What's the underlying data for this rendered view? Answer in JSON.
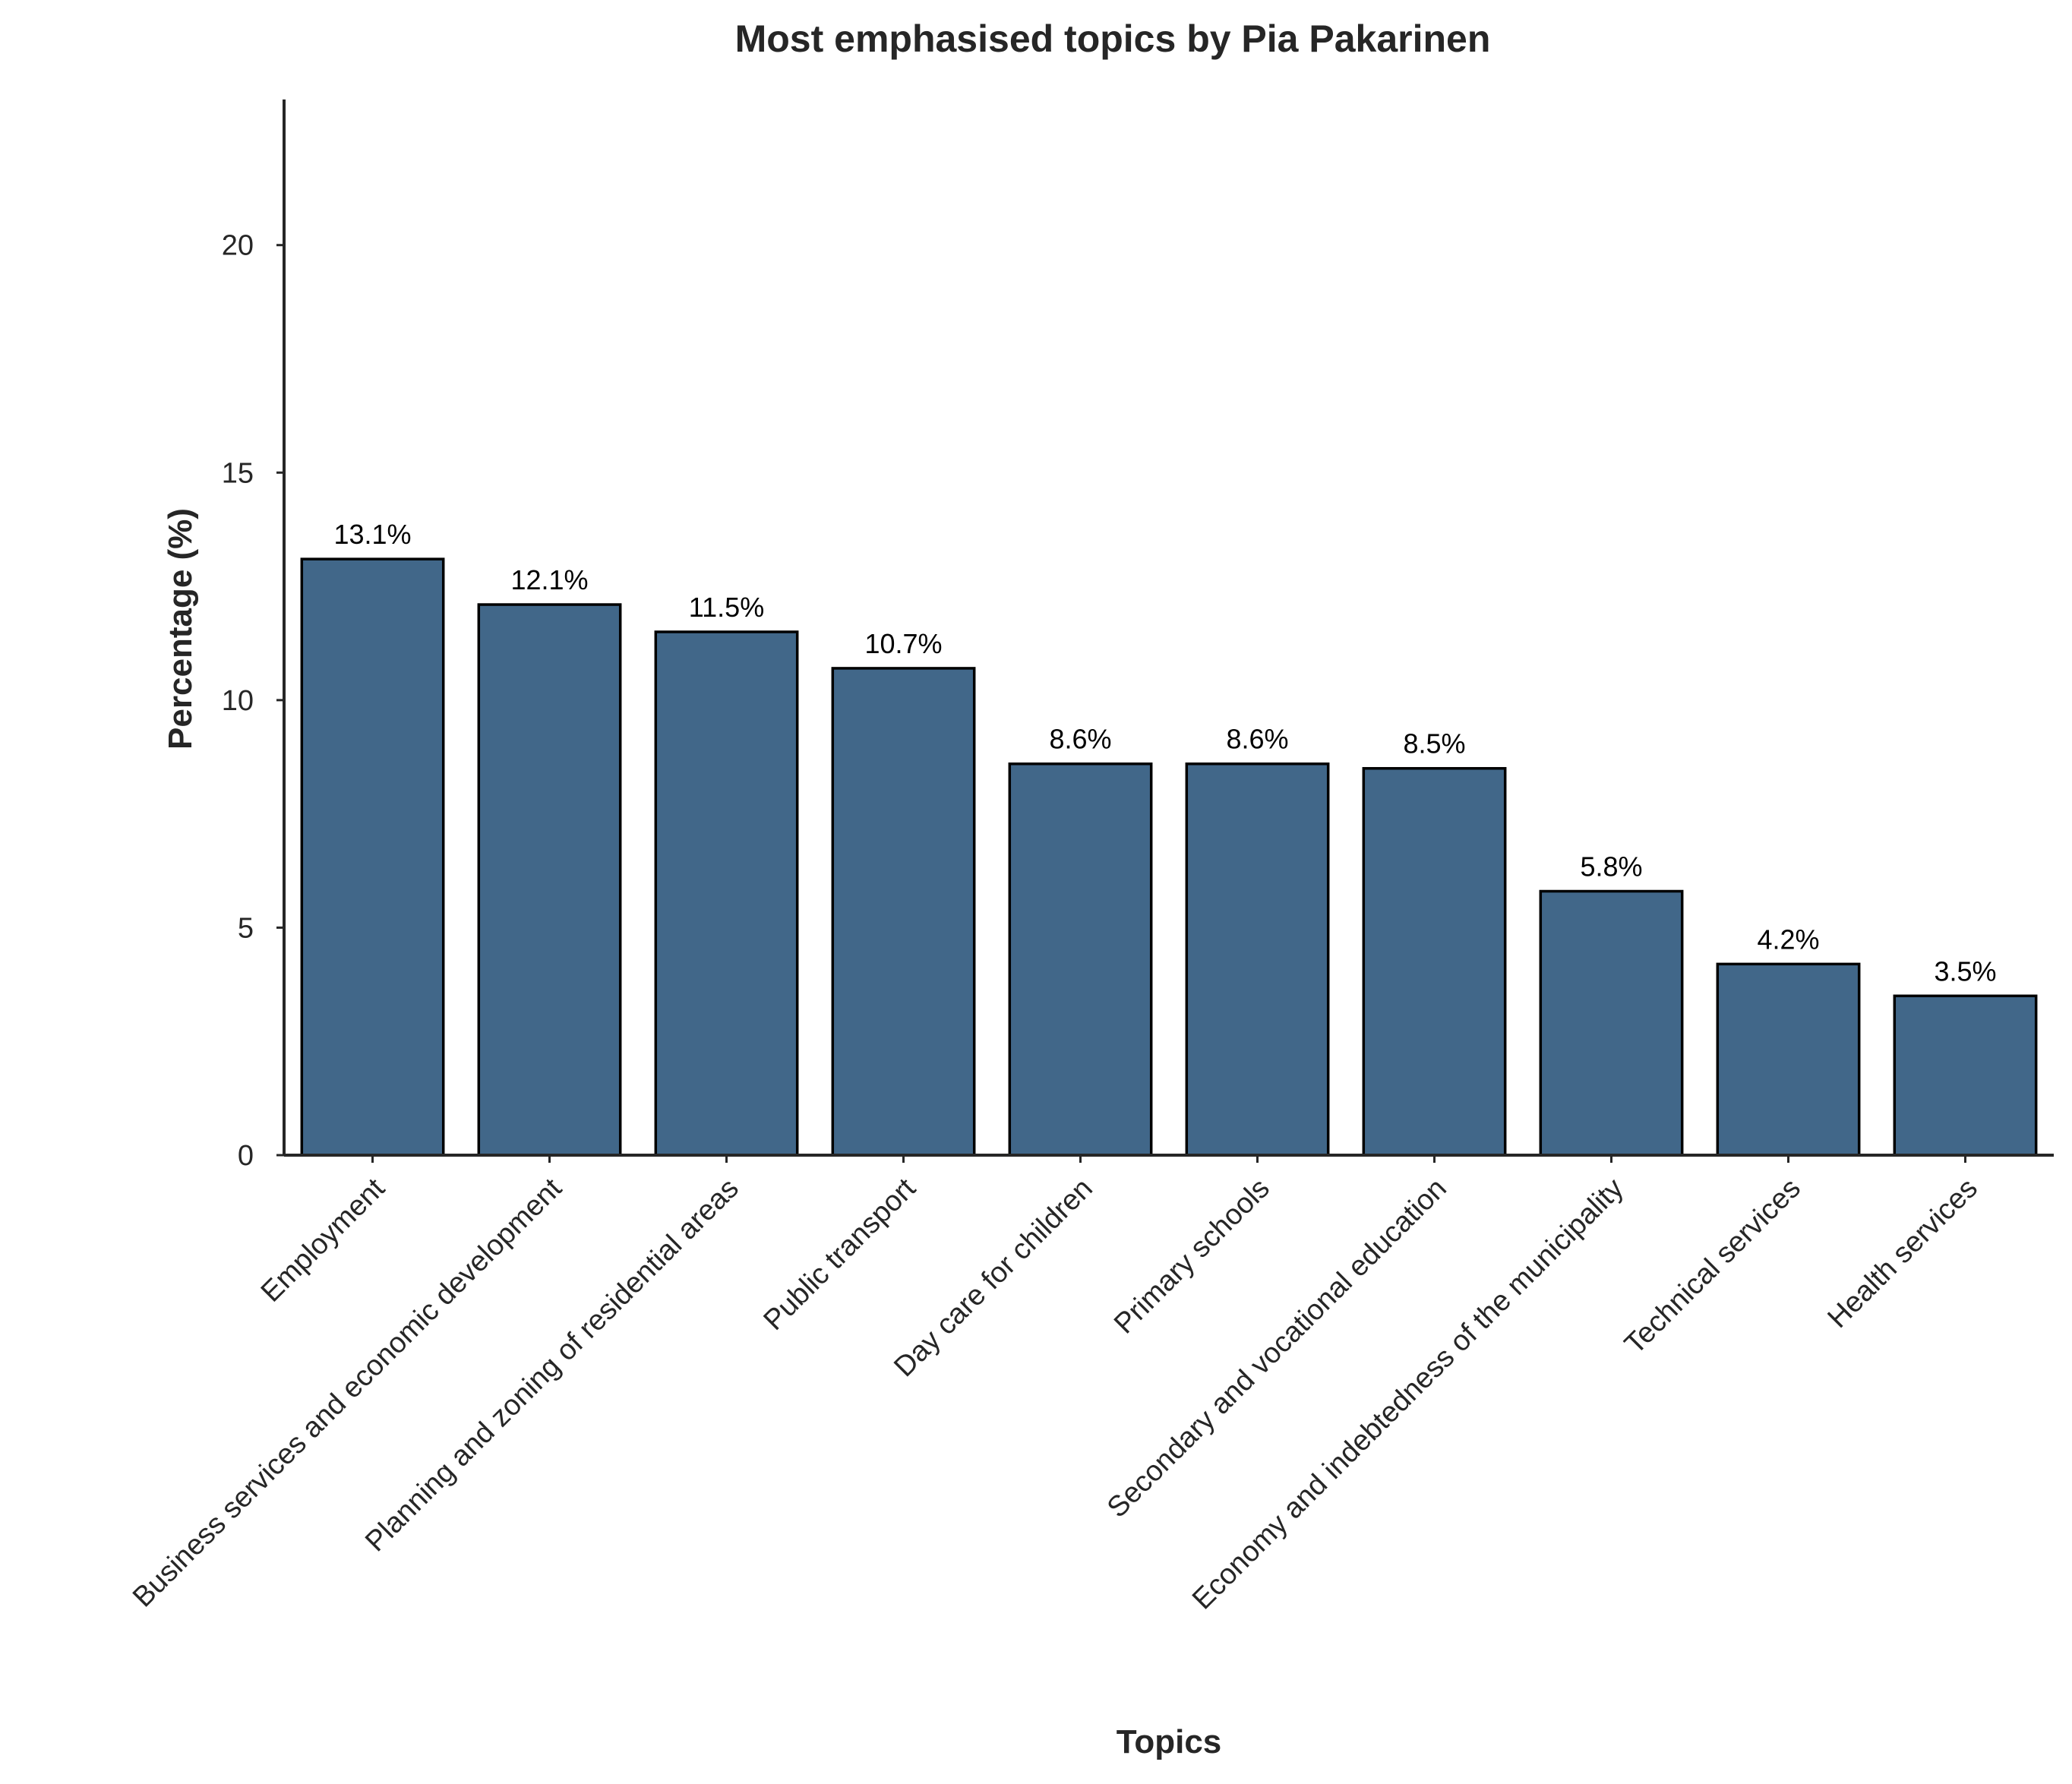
{
  "chart_data": {
    "type": "bar",
    "title": "Most emphasised topics by Pia Pakarinen",
    "xlabel": "Topics",
    "ylabel": "Percentage (%)",
    "ylim": [
      0,
      23.2
    ],
    "yticks": [
      0,
      5,
      10,
      15,
      20
    ],
    "grid": false,
    "categories": [
      "Employment",
      "Business services and economic development",
      "Planning and zoning of residential areas",
      "Public transport",
      "Day care for children",
      "Primary schools",
      "Secondary and vocational education",
      "Economy and indebtedness of the municipality",
      "Technical services",
      "Health services"
    ],
    "values": [
      13.1,
      12.1,
      11.5,
      10.7,
      8.6,
      8.6,
      8.5,
      5.8,
      4.2,
      3.5
    ],
    "value_labels": [
      "13.1%",
      "12.1%",
      "11.5%",
      "10.7%",
      "8.6%",
      "8.6%",
      "8.5%",
      "5.8%",
      "4.2%",
      "3.5%"
    ],
    "bar_color": "#416789",
    "edge_color": "#000000"
  }
}
